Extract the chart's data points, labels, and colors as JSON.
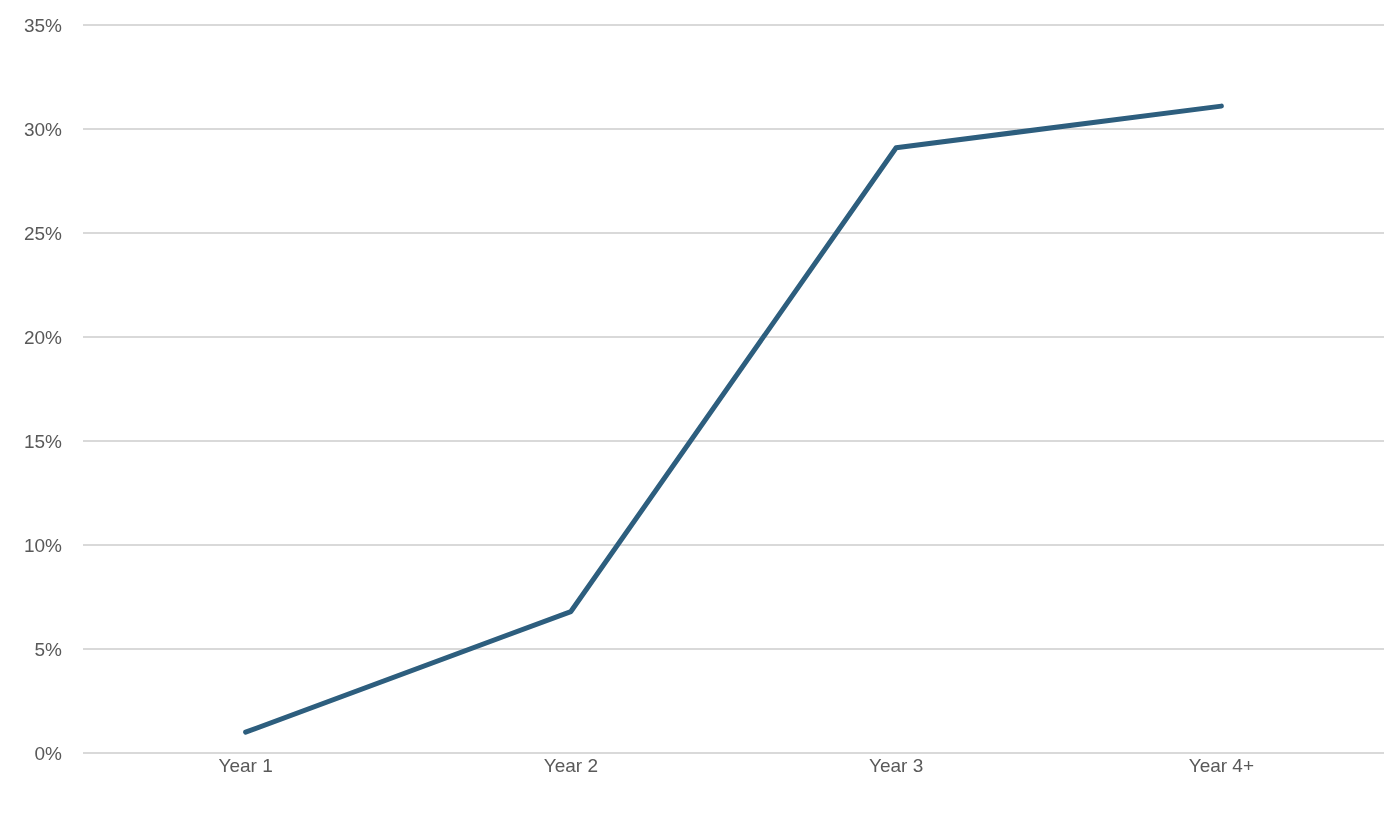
{
  "chart_data": {
    "type": "line",
    "categories": [
      "Year 1",
      "Year 2",
      "Year 3",
      "Year 4+"
    ],
    "values": [
      1.0,
      6.8,
      29.1,
      31.1
    ],
    "color": "#2d5e7e",
    "ylim": [
      0,
      35
    ],
    "yticks": [
      {
        "value": 0,
        "label": "0%"
      },
      {
        "value": 5,
        "label": "5%"
      },
      {
        "value": 10,
        "label": "10%"
      },
      {
        "value": 15,
        "label": "15%"
      },
      {
        "value": 20,
        "label": "20%"
      },
      {
        "value": 25,
        "label": "25%"
      },
      {
        "value": 30,
        "label": "30%"
      },
      {
        "value": 35,
        "label": "35%"
      }
    ],
    "grid": "y",
    "marker": "none",
    "line_style": "solid"
  }
}
